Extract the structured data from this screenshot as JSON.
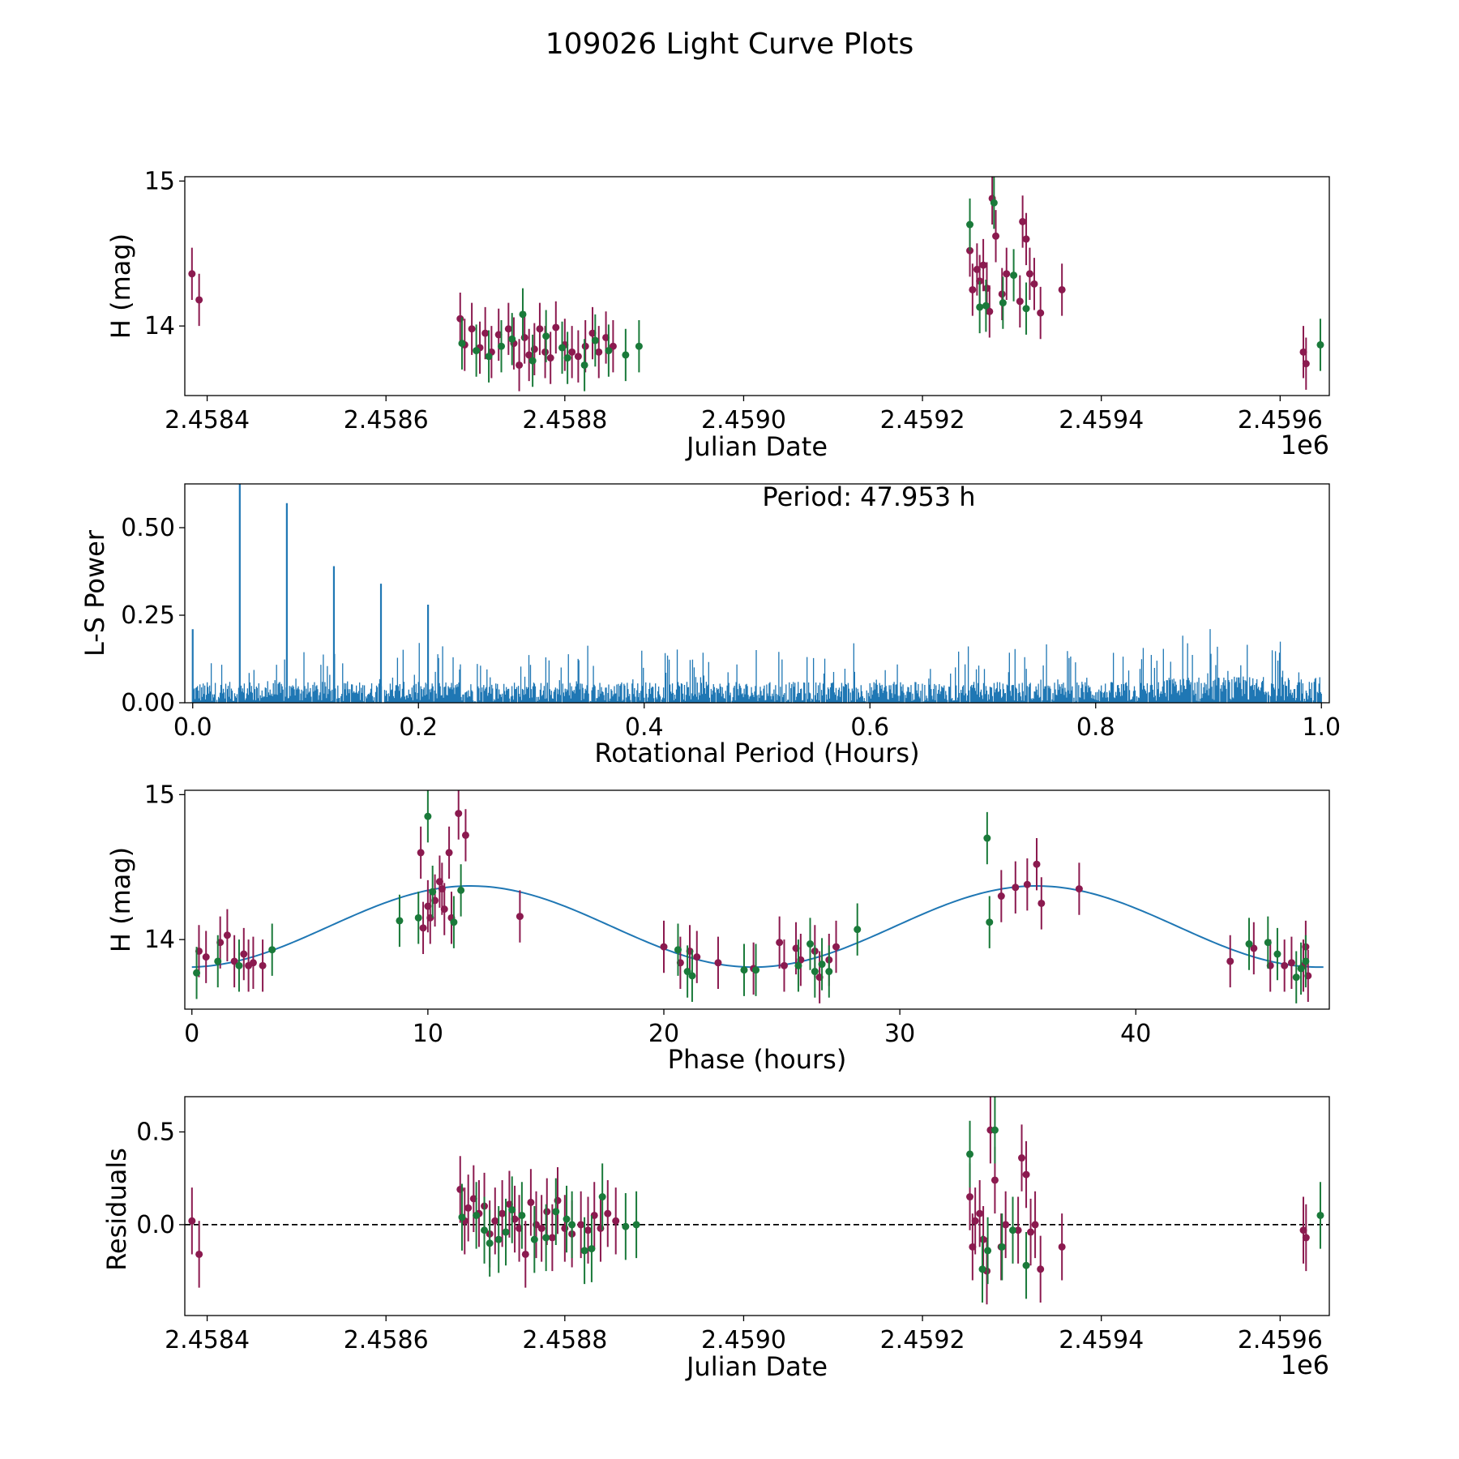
{
  "figure_title": "109026 Light Curve Plots",
  "colors": {
    "magenta": "#8B1A4F",
    "green": "#1A7A3A",
    "blue": "#1F77B4",
    "dash": "#000000"
  },
  "chart_data": [
    {
      "id": "lightcurve",
      "type": "scatter",
      "title": "",
      "xlabel": "Julian Date",
      "ylabel": "H (mag)",
      "offset_label": "1e6",
      "xlim": [
        2458375,
        2459655
      ],
      "ylim": [
        13.52,
        15.03
      ],
      "xticks": [
        2458400,
        2458600,
        2458800,
        2459000,
        2459200,
        2459400,
        2459600
      ],
      "xtick_labels": [
        "2.4584",
        "2.4586",
        "2.4588",
        "2.4590",
        "2.4592",
        "2.4594",
        "2.4596"
      ],
      "yticks": [
        14,
        15
      ],
      "ytick_labels": [
        "14",
        "15"
      ],
      "error": 0.18,
      "series": [
        {
          "name": "magenta",
          "points": [
            [
              2458383,
              14.36
            ],
            [
              2458391,
              14.18
            ],
            [
              2458683,
              14.05
            ],
            [
              2458688,
              13.87
            ],
            [
              2458696,
              13.98
            ],
            [
              2458705,
              13.85
            ],
            [
              2458711,
              13.95
            ],
            [
              2458718,
              13.82
            ],
            [
              2458726,
              13.94
            ],
            [
              2458737,
              13.98
            ],
            [
              2458743,
              13.88
            ],
            [
              2458749,
              13.73
            ],
            [
              2458755,
              13.92
            ],
            [
              2458760,
              13.8
            ],
            [
              2458766,
              13.84
            ],
            [
              2458772,
              13.98
            ],
            [
              2458778,
              13.82
            ],
            [
              2458784,
              13.78
            ],
            [
              2458790,
              13.99
            ],
            [
              2458800,
              13.87
            ],
            [
              2458808,
              13.82
            ],
            [
              2458815,
              13.79
            ],
            [
              2458823,
              13.86
            ],
            [
              2458831,
              13.95
            ],
            [
              2458838,
              13.82
            ],
            [
              2458846,
              13.92
            ],
            [
              2458854,
              13.86
            ],
            [
              2459253,
              14.52
            ],
            [
              2459256,
              14.25
            ],
            [
              2459261,
              14.39
            ],
            [
              2459264,
              14.31
            ],
            [
              2459268,
              14.42
            ],
            [
              2459272,
              14.26
            ],
            [
              2459275,
              14.1
            ],
            [
              2459278,
              14.88
            ],
            [
              2459282,
              14.62
            ],
            [
              2459289,
              14.22
            ],
            [
              2459294,
              14.36
            ],
            [
              2459309,
              14.17
            ],
            [
              2459312,
              14.72
            ],
            [
              2459316,
              14.6
            ],
            [
              2459320,
              14.36
            ],
            [
              2459325,
              14.29
            ],
            [
              2459332,
              14.09
            ],
            [
              2459356,
              14.25
            ],
            [
              2459626,
              13.82
            ],
            [
              2459629,
              13.74
            ]
          ]
        },
        {
          "name": "green",
          "points": [
            [
              2458685,
              13.88
            ],
            [
              2458701,
              13.83
            ],
            [
              2458715,
              13.79
            ],
            [
              2458729,
              13.86
            ],
            [
              2458741,
              13.91
            ],
            [
              2458753,
              14.08
            ],
            [
              2458764,
              13.76
            ],
            [
              2458779,
              13.93
            ],
            [
              2458797,
              13.85
            ],
            [
              2458803,
              13.78
            ],
            [
              2458822,
              13.73
            ],
            [
              2458834,
              13.9
            ],
            [
              2458849,
              13.83
            ],
            [
              2458868,
              13.8
            ],
            [
              2458883,
              13.86
            ],
            [
              2459253,
              14.7
            ],
            [
              2459264,
              14.13
            ],
            [
              2459271,
              14.14
            ],
            [
              2459280,
              14.85
            ],
            [
              2459290,
              14.16
            ],
            [
              2459302,
              14.35
            ],
            [
              2459316,
              14.12
            ],
            [
              2459645,
              13.87
            ]
          ]
        }
      ]
    },
    {
      "id": "periodogram",
      "type": "line",
      "title": "",
      "xlabel": "Rotational Period (Hours)",
      "ylabel": "L-S Power",
      "annotation": "Period: 47.953 h",
      "xlim": [
        -0.007,
        1.007
      ],
      "ylim": [
        0,
        0.625
      ],
      "xticks": [
        0.0,
        0.2,
        0.4,
        0.6,
        0.8,
        1.0
      ],
      "xtick_labels": [
        "0.0",
        "0.2",
        "0.4",
        "0.6",
        "0.8",
        "1.0"
      ],
      "yticks": [
        0.0,
        0.25,
        0.5
      ],
      "ytick_labels": [
        "0.00",
        "0.25",
        "0.50"
      ],
      "peaks": [
        [
          0.0,
          0.21
        ],
        [
          0.0417,
          0.625
        ],
        [
          0.0834,
          0.57
        ],
        [
          0.1251,
          0.39
        ],
        [
          0.1668,
          0.34
        ],
        [
          0.2085,
          0.28
        ]
      ],
      "noise_level": 0.12
    },
    {
      "id": "phased",
      "type": "scatter",
      "title": "",
      "xlabel": "Phase (hours)",
      "ylabel": "H (mag)",
      "xlim": [
        -0.3,
        48.2
      ],
      "ylim": [
        13.52,
        15.03
      ],
      "xticks": [
        0,
        10,
        20,
        30,
        40
      ],
      "xtick_labels": [
        "0",
        "10",
        "20",
        "30",
        "40"
      ],
      "yticks": [
        14,
        15
      ],
      "ytick_labels": [
        "14",
        "15"
      ],
      "error": 0.18,
      "model": {
        "mean": 14.09,
        "amplitude": 0.28,
        "period": 23.98,
        "peak_phase": 11.8
      },
      "series": [
        {
          "name": "magenta",
          "points": [
            [
              0.3,
              13.92
            ],
            [
              0.6,
              13.88
            ],
            [
              1.5,
              14.03
            ],
            [
              1.2,
              13.98
            ],
            [
              1.8,
              13.85
            ],
            [
              2.2,
              13.9
            ],
            [
              2.4,
              13.82
            ],
            [
              2.6,
              13.84
            ],
            [
              3.0,
              13.82
            ],
            [
              9.7,
              14.6
            ],
            [
              9.8,
              14.08
            ],
            [
              10.0,
              14.23
            ],
            [
              10.1,
              14.15
            ],
            [
              10.3,
              14.27
            ],
            [
              10.5,
              14.4
            ],
            [
              10.6,
              14.35
            ],
            [
              10.7,
              14.21
            ],
            [
              10.9,
              14.6
            ],
            [
              11.0,
              14.15
            ],
            [
              11.3,
              14.87
            ],
            [
              11.6,
              14.72
            ],
            [
              13.9,
              14.16
            ],
            [
              20.0,
              13.95
            ],
            [
              20.7,
              13.84
            ],
            [
              21.1,
              13.92
            ],
            [
              21.4,
              13.88
            ],
            [
              22.3,
              13.84
            ],
            [
              23.8,
              13.8
            ],
            [
              24.9,
              13.98
            ],
            [
              25.1,
              13.82
            ],
            [
              25.6,
              13.94
            ],
            [
              25.8,
              13.86
            ],
            [
              26.4,
              13.92
            ],
            [
              26.6,
              13.74
            ],
            [
              27.0,
              13.86
            ],
            [
              27.3,
              13.95
            ],
            [
              34.3,
              14.3
            ],
            [
              34.9,
              14.36
            ],
            [
              35.4,
              14.38
            ],
            [
              35.8,
              14.52
            ],
            [
              36.0,
              14.25
            ],
            [
              37.6,
              14.35
            ],
            [
              44.0,
              13.85
            ],
            [
              45.0,
              13.94
            ],
            [
              45.7,
              13.82
            ],
            [
              46.3,
              13.82
            ],
            [
              46.6,
              13.84
            ],
            [
              47.1,
              13.82
            ],
            [
              47.2,
              13.95
            ],
            [
              47.3,
              13.75
            ]
          ]
        },
        {
          "name": "green",
          "points": [
            [
              0.2,
              13.77
            ],
            [
              1.1,
              13.85
            ],
            [
              2.0,
              13.82
            ],
            [
              3.4,
              13.93
            ],
            [
              8.8,
              14.13
            ],
            [
              9.6,
              14.15
            ],
            [
              10.0,
              14.85
            ],
            [
              10.2,
              14.33
            ],
            [
              11.1,
              14.12
            ],
            [
              11.4,
              14.34
            ],
            [
              20.6,
              13.93
            ],
            [
              21.0,
              13.78
            ],
            [
              21.2,
              13.75
            ],
            [
              23.4,
              13.79
            ],
            [
              23.9,
              13.79
            ],
            [
              25.7,
              13.82
            ],
            [
              26.2,
              13.97
            ],
            [
              26.4,
              13.78
            ],
            [
              26.7,
              13.83
            ],
            [
              27.0,
              13.78
            ],
            [
              28.2,
              14.07
            ],
            [
              33.7,
              14.7
            ],
            [
              33.8,
              14.12
            ],
            [
              44.8,
              13.97
            ],
            [
              45.6,
              13.98
            ],
            [
              46.0,
              13.9
            ],
            [
              46.8,
              13.74
            ],
            [
              47.0,
              13.8
            ],
            [
              47.2,
              13.85
            ]
          ]
        }
      ]
    },
    {
      "id": "residuals",
      "type": "scatter",
      "title": "",
      "xlabel": "Julian Date",
      "ylabel": "Residuals",
      "offset_label": "1e6",
      "xlim": [
        2458375,
        2459655
      ],
      "ylim": [
        -0.49,
        0.69
      ],
      "xticks": [
        2458400,
        2458600,
        2458800,
        2459000,
        2459200,
        2459400,
        2459600
      ],
      "xtick_labels": [
        "2.4584",
        "2.4586",
        "2.4588",
        "2.4590",
        "2.4592",
        "2.4594",
        "2.4596"
      ],
      "yticks": [
        0.0,
        0.5
      ],
      "ytick_labels": [
        "0.0",
        "0.5"
      ],
      "zero_line": 0,
      "error": 0.18,
      "series": [
        {
          "name": "magenta",
          "points": [
            [
              2458383,
              0.02
            ],
            [
              2458391,
              -0.16
            ],
            [
              2458683,
              0.19
            ],
            [
              2458688,
              0.02
            ],
            [
              2458692,
              0.09
            ],
            [
              2458698,
              0.14
            ],
            [
              2458704,
              0.06
            ],
            [
              2458710,
              0.1
            ],
            [
              2458716,
              -0.05
            ],
            [
              2458722,
              0.02
            ],
            [
              2458730,
              0.06
            ],
            [
              2458738,
              0.11
            ],
            [
              2458744,
              0.03
            ],
            [
              2458749,
              -0.02
            ],
            [
              2458756,
              -0.16
            ],
            [
              2458762,
              0.12
            ],
            [
              2458768,
              0.0
            ],
            [
              2458774,
              -0.02
            ],
            [
              2458780,
              0.07
            ],
            [
              2458786,
              -0.07
            ],
            [
              2458792,
              0.13
            ],
            [
              2458800,
              -0.02
            ],
            [
              2458808,
              -0.05
            ],
            [
              2458818,
              0.0
            ],
            [
              2458826,
              -0.03
            ],
            [
              2458833,
              0.05
            ],
            [
              2458840,
              -0.02
            ],
            [
              2458848,
              0.06
            ],
            [
              2458857,
              0.02
            ],
            [
              2459253,
              0.15
            ],
            [
              2459256,
              -0.12
            ],
            [
              2459259,
              0.02
            ],
            [
              2459264,
              0.06
            ],
            [
              2459268,
              -0.08
            ],
            [
              2459272,
              -0.25
            ],
            [
              2459276,
              0.51
            ],
            [
              2459281,
              0.24
            ],
            [
              2459288,
              -0.12
            ],
            [
              2459293,
              0.0
            ],
            [
              2459307,
              -0.03
            ],
            [
              2459311,
              0.36
            ],
            [
              2459316,
              0.27
            ],
            [
              2459321,
              -0.04
            ],
            [
              2459326,
              0.0
            ],
            [
              2459332,
              -0.24
            ],
            [
              2459356,
              -0.12
            ],
            [
              2459626,
              -0.03
            ],
            [
              2459629,
              -0.07
            ]
          ]
        },
        {
          "name": "green",
          "points": [
            [
              2458685,
              0.04
            ],
            [
              2458701,
              0.05
            ],
            [
              2458710,
              -0.03
            ],
            [
              2458716,
              -0.1
            ],
            [
              2458726,
              -0.08
            ],
            [
              2458734,
              -0.04
            ],
            [
              2458741,
              0.08
            ],
            [
              2458752,
              0.05
            ],
            [
              2458766,
              -0.08
            ],
            [
              2458779,
              -0.07
            ],
            [
              2458790,
              0.07
            ],
            [
              2458802,
              0.03
            ],
            [
              2458808,
              0.0
            ],
            [
              2458822,
              -0.14
            ],
            [
              2458830,
              -0.13
            ],
            [
              2458842,
              0.15
            ],
            [
              2458868,
              -0.01
            ],
            [
              2458880,
              0.0
            ],
            [
              2459253,
              0.38
            ],
            [
              2459267,
              -0.24
            ],
            [
              2459273,
              -0.14
            ],
            [
              2459281,
              0.51
            ],
            [
              2459289,
              -0.12
            ],
            [
              2459301,
              -0.03
            ],
            [
              2459316,
              -0.22
            ],
            [
              2459645,
              0.05
            ]
          ]
        }
      ]
    }
  ]
}
